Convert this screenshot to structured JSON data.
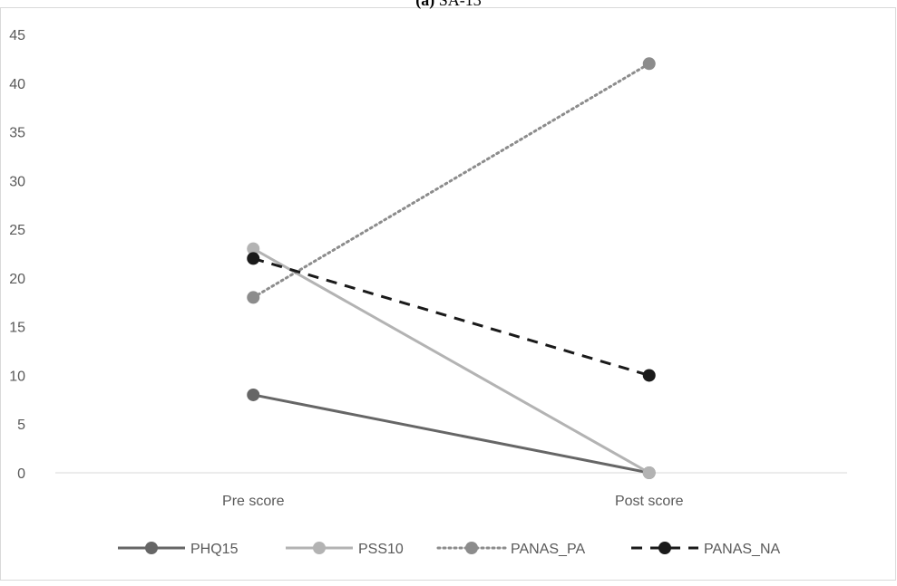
{
  "chart_data": {
    "type": "line",
    "title_label": "(a)",
    "title_rest": " SA-13",
    "categories": [
      "Pre score",
      "Post score"
    ],
    "ylim": [
      0,
      45
    ],
    "y_ticks": [
      "0",
      "5",
      "10",
      "15",
      "20",
      "25",
      "30",
      "35",
      "40",
      "45"
    ],
    "grid": false,
    "legend_position": "bottom",
    "series": [
      {
        "name": "PHQ15",
        "values": [
          8,
          0
        ],
        "color": "#666666",
        "style": "solid"
      },
      {
        "name": "PSS10",
        "values": [
          23,
          0
        ],
        "color": "#b3b3b3",
        "style": "solid"
      },
      {
        "name": "PANAS_PA",
        "values": [
          18,
          42
        ],
        "color": "#8c8c8c",
        "style": "dotted"
      },
      {
        "name": "PANAS_NA",
        "values": [
          22,
          10
        ],
        "color": "#1a1a1a",
        "style": "dashed"
      }
    ]
  }
}
